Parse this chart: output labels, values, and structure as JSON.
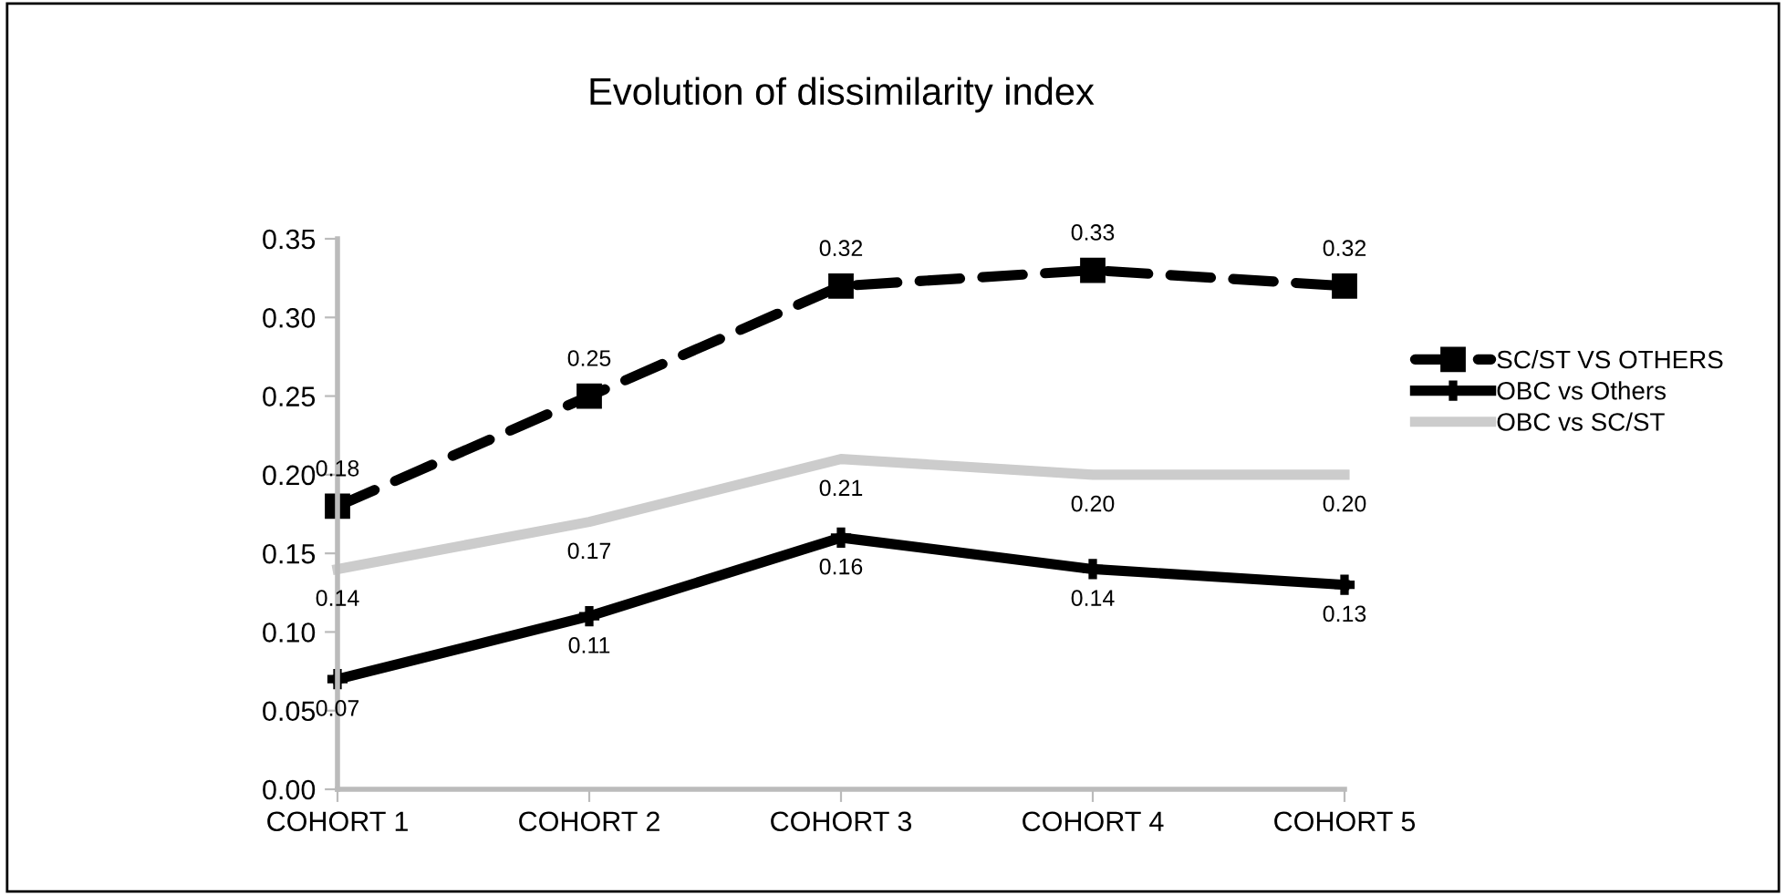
{
  "chart_data": {
    "type": "line",
    "title": "Evolution of dissimilarity index",
    "categories": [
      "COHORT 1",
      "COHORT 2",
      "COHORT 3",
      "COHORT 4",
      "COHORT 5"
    ],
    "series": [
      {
        "name": "SC/ST VS OTHERS",
        "color": "#000000",
        "values": [
          0.18,
          0.25,
          0.32,
          0.33,
          0.32
        ],
        "value_labels": [
          "0.18",
          "0.25",
          "0.32",
          "0.33",
          "0.32"
        ],
        "marker": "square",
        "line_style": "dashed"
      },
      {
        "name": "OBC vs Others",
        "color": "#000000",
        "values": [
          0.07,
          0.11,
          0.16,
          0.14,
          0.13
        ],
        "value_labels": [
          "0.07",
          "0.11",
          "0.16",
          "0.14",
          "0.13"
        ],
        "marker": "cross",
        "line_style": "solid"
      },
      {
        "name": "OBC vs SC/ST",
        "color": "#cccccc",
        "values": [
          0.14,
          0.17,
          0.21,
          0.2,
          0.2
        ],
        "value_labels": [
          "0.14",
          "0.17",
          "0.21",
          "0.20",
          "0.20"
        ],
        "marker": "none",
        "line_style": "solid"
      }
    ],
    "ylim": [
      0,
      0.35
    ],
    "yticks": [
      {
        "value": 0,
        "label": "0.00"
      },
      {
        "value": 0.05,
        "label": "0.05"
      },
      {
        "value": 0.1,
        "label": "0.10"
      },
      {
        "value": 0.15,
        "label": "0.15"
      },
      {
        "value": 0.2,
        "label": "0.20"
      },
      {
        "value": 0.25,
        "label": "0.25"
      },
      {
        "value": 0.3,
        "label": "0.30"
      },
      {
        "value": 0.35,
        "label": "0.35"
      }
    ],
    "legend": "right",
    "grid": false
  }
}
